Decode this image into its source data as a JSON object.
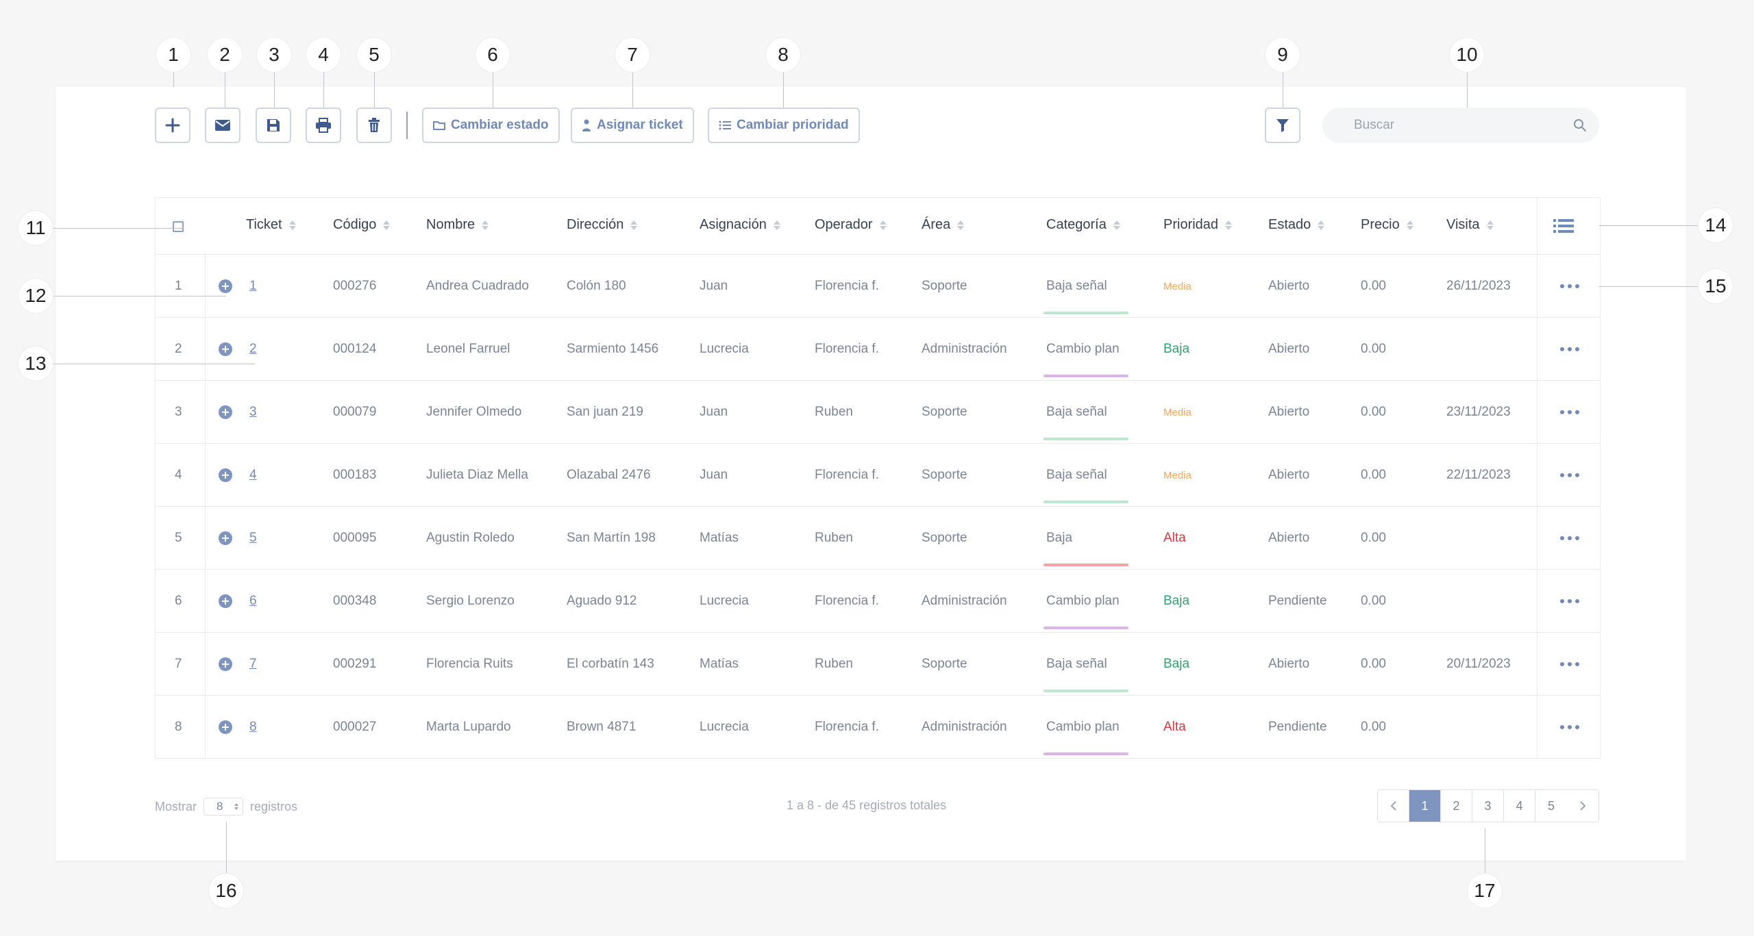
{
  "toolbar": {
    "text_buttons": [
      {
        "label": "Cambiar estado"
      },
      {
        "label": "Asignar ticket"
      },
      {
        "label": "Cambiar prioridad"
      }
    ],
    "search_placeholder": "Buscar"
  },
  "table": {
    "columns": [
      "Ticket",
      "Código",
      "Nombre",
      "Dirección",
      "Asignación",
      "Operador",
      "Área",
      "Categoría",
      "Prioridad",
      "Estado",
      "Precio",
      "Visita"
    ],
    "rows": [
      {
        "n": "1",
        "ticket": "1",
        "codigo": "000276",
        "nombre": "Andrea Cuadrado",
        "direccion": "Colón 180",
        "asignacion": "Juan",
        "operador": "Florencia f.",
        "area": "Soporte",
        "categoria": "Baja señal",
        "cat_color": "#bde7cf",
        "prioridad": "Media",
        "prio_color": "#f0a65a",
        "estado": "Abierto",
        "precio": "0.00",
        "visita": "26/11/2023"
      },
      {
        "n": "2",
        "ticket": "2",
        "codigo": "000124",
        "nombre": "Leonel Farruel",
        "direccion": "Sarmiento 1456",
        "asignacion": "Lucrecia",
        "operador": "Florencia f.",
        "area": "Administración",
        "categoria": "Cambio plan",
        "cat_color": "#dcb5e6",
        "prioridad": "Baja",
        "prio_color": "#2fa36b",
        "estado": "Abierto",
        "precio": "0.00",
        "visita": ""
      },
      {
        "n": "3",
        "ticket": "3",
        "codigo": "000079",
        "nombre": "Jennifer Olmedo",
        "direccion": "San juan 219",
        "asignacion": "Juan",
        "operador": "Ruben",
        "area": "Soporte",
        "categoria": "Baja señal",
        "cat_color": "#bde7cf",
        "prioridad": "Media",
        "prio_color": "#f0a65a",
        "estado": "Abierto",
        "precio": "0.00",
        "visita": "23/11/2023"
      },
      {
        "n": "4",
        "ticket": "4",
        "codigo": "000183",
        "nombre": "Julieta Diaz Mella",
        "direccion": "Olazabal 2476",
        "asignacion": "Juan",
        "operador": "Florencia f.",
        "area": "Soporte",
        "categoria": "Baja señal",
        "cat_color": "#bde7cf",
        "prioridad": "Media",
        "prio_color": "#f0a65a",
        "estado": "Abierto",
        "precio": "0.00",
        "visita": "22/11/2023"
      },
      {
        "n": "5",
        "ticket": "5",
        "codigo": "000095",
        "nombre": "Agustin Roledo",
        "direccion": "San Martín 198",
        "asignacion": "Matías",
        "operador": "Ruben",
        "area": "Soporte",
        "categoria": "Baja",
        "cat_color": "#f5a3a3",
        "prioridad": "Alta",
        "prio_color": "#d9363e",
        "estado": "Abierto",
        "precio": "0.00",
        "visita": ""
      },
      {
        "n": "6",
        "ticket": "6",
        "codigo": "000348",
        "nombre": "Sergio Lorenzo",
        "direccion": "Aguado 912",
        "asignacion": "Lucrecia",
        "operador": "Florencia f.",
        "area": "Administración",
        "categoria": "Cambio plan",
        "cat_color": "#dcb5e6",
        "prioridad": "Baja",
        "prio_color": "#2fa36b",
        "estado": "Pendiente",
        "precio": "0.00",
        "visita": ""
      },
      {
        "n": "7",
        "ticket": "7",
        "codigo": "000291",
        "nombre": "Florencia Ruits",
        "direccion": "El corbatín 143",
        "asignacion": "Matías",
        "operador": "Ruben",
        "area": "Soporte",
        "categoria": "Baja señal",
        "cat_color": "#bde7cf",
        "prioridad": "Baja",
        "prio_color": "#2fa36b",
        "estado": "Abierto",
        "precio": "0.00",
        "visita": "20/11/2023"
      },
      {
        "n": "8",
        "ticket": "8",
        "codigo": "000027",
        "nombre": "Marta Lupardo",
        "direccion": "Brown 4871",
        "asignacion": "Lucrecia",
        "operador": "Florencia f.",
        "area": "Administración",
        "categoria": "Cambio plan",
        "cat_color": "#dcb5e6",
        "prioridad": "Alta",
        "prio_color": "#d9363e",
        "estado": "Pendiente",
        "precio": "0.00",
        "visita": ""
      }
    ]
  },
  "footer": {
    "show_label": "Mostrar",
    "show_value": "8",
    "records_label": "registros",
    "summary": "1 a 8 - de 45 registros totales",
    "pages": [
      "1",
      "2",
      "3",
      "4",
      "5"
    ],
    "active_page": "1"
  },
  "callouts": [
    "1",
    "2",
    "3",
    "4",
    "5",
    "6",
    "7",
    "8",
    "9",
    "10",
    "11",
    "12",
    "13",
    "14",
    "15",
    "16",
    "17"
  ],
  "colors": {
    "accent": "#7f95c0",
    "icon": "#3f5a8c"
  }
}
